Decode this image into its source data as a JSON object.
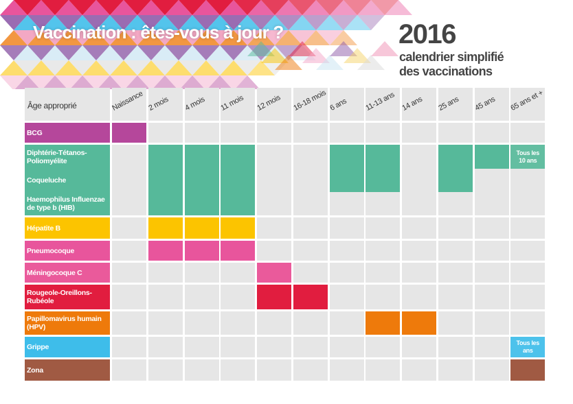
{
  "header": {
    "title": "Vaccination : êtes-vous à jour ?",
    "year": "2016",
    "subtitle": [
      "calendrier simplifié",
      "des vaccinations"
    ]
  },
  "table": {
    "corner": "Âge approprié",
    "columns": [
      "Naissance",
      "2 mois",
      "4 mois",
      "11 mois",
      "12 mois",
      "16-18 mois",
      "6 ans",
      "11-13 ans",
      "14 ans",
      "25 ans",
      "45 ans",
      "65 ans et +"
    ],
    "rows": [
      {
        "color": "#b5479b",
        "items": [
          {
            "label": "BCG",
            "given": [
              true,
              false,
              false,
              false,
              false,
              false,
              false,
              false,
              false,
              false,
              false,
              false
            ]
          }
        ]
      },
      {
        "color": "#56b99a",
        "items": [
          {
            "label": "Diphtérie-Tétanos-Poliomyélite",
            "given": [
              false,
              true,
              true,
              true,
              false,
              false,
              true,
              true,
              false,
              true,
              true,
              "Tous les 10 ans"
            ]
          },
          {
            "label": "Coqueluche",
            "given": [
              false,
              true,
              true,
              true,
              false,
              false,
              true,
              true,
              false,
              true,
              false,
              false
            ]
          },
          {
            "label": "Haemophilus Influenzae de type b (HIB)",
            "given": [
              false,
              true,
              true,
              true,
              false,
              false,
              false,
              false,
              false,
              false,
              false,
              false
            ]
          }
        ]
      },
      {
        "color": "#fcc400",
        "items": [
          {
            "label": "Hépatite B",
            "given": [
              false,
              true,
              true,
              true,
              false,
              false,
              false,
              false,
              false,
              false,
              false,
              false
            ]
          }
        ]
      },
      {
        "color": "#e8559c",
        "items": [
          {
            "label": "Pneumocoque",
            "given": [
              false,
              true,
              true,
              true,
              false,
              false,
              false,
              false,
              false,
              false,
              false,
              false
            ]
          }
        ]
      },
      {
        "color": "#ea5a9b",
        "items": [
          {
            "label": "Méningocoque C",
            "given": [
              false,
              false,
              false,
              false,
              true,
              false,
              false,
              false,
              false,
              false,
              false,
              false
            ]
          }
        ]
      },
      {
        "color": "#e11d3f",
        "items": [
          {
            "label": "Rougeole-Oreillons-Rubéole",
            "given": [
              false,
              false,
              false,
              false,
              true,
              true,
              false,
              false,
              false,
              false,
              false,
              false
            ]
          }
        ]
      },
      {
        "color": "#ee7a0b",
        "items": [
          {
            "label": "Papillomavirus humain (HPV)",
            "given": [
              false,
              false,
              false,
              false,
              false,
              false,
              false,
              true,
              true,
              false,
              false,
              false
            ]
          }
        ]
      },
      {
        "color": "#3ebdea",
        "items": [
          {
            "label": "Grippe",
            "given": [
              false,
              false,
              false,
              false,
              false,
              false,
              false,
              false,
              false,
              false,
              false,
              "Tous les ans"
            ]
          }
        ]
      },
      {
        "color": "#a05a43",
        "items": [
          {
            "label": "Zona",
            "given": [
              false,
              false,
              false,
              false,
              false,
              false,
              false,
              false,
              false,
              false,
              false,
              true
            ]
          }
        ]
      }
    ]
  }
}
